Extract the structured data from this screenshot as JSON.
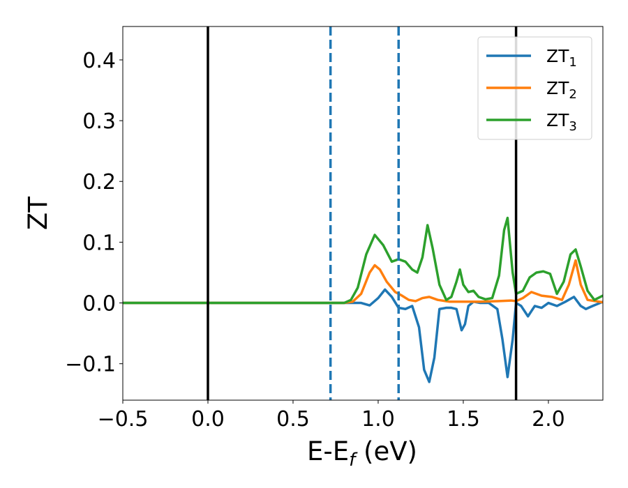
{
  "chart_data": {
    "type": "line",
    "xlabel": "E-E",
    "xlabel_sub": "f",
    "xlabel_unit": " (eV)",
    "ylabel": "ZT",
    "xlim": [
      -0.5,
      2.32
    ],
    "ylim": [
      -0.16,
      0.455
    ],
    "xticks": [
      -0.5,
      0.0,
      0.5,
      1.0,
      1.5,
      2.0
    ],
    "xtick_labels": [
      "−0.5",
      "0.0",
      "0.5",
      "1.0",
      "1.5",
      "2.0"
    ],
    "yticks": [
      -0.1,
      0.0,
      0.1,
      0.2,
      0.3,
      0.4
    ],
    "ytick_labels": [
      "−0.1",
      "0.0",
      "0.1",
      "0.2",
      "0.3",
      "0.4"
    ],
    "grid": false,
    "legend_position": "top-right",
    "vlines": [
      {
        "x": 0.0,
        "style": "solid",
        "color": "#000000"
      },
      {
        "x": 1.81,
        "style": "solid",
        "color": "#000000"
      },
      {
        "x": 0.72,
        "style": "dashed",
        "color": "#1f77b4"
      },
      {
        "x": 1.12,
        "style": "dashed",
        "color": "#1f77b4"
      }
    ],
    "series": [
      {
        "name": "ZT",
        "sub": "1",
        "color": "#1f77b4",
        "points": [
          [
            -0.5,
            0
          ],
          [
            0.8,
            0
          ],
          [
            0.9,
            0
          ],
          [
            0.95,
            -0.004
          ],
          [
            1.0,
            0.008
          ],
          [
            1.04,
            0.022
          ],
          [
            1.08,
            0.01
          ],
          [
            1.12,
            -0.008
          ],
          [
            1.16,
            -0.01
          ],
          [
            1.2,
            -0.005
          ],
          [
            1.24,
            -0.04
          ],
          [
            1.27,
            -0.11
          ],
          [
            1.3,
            -0.13
          ],
          [
            1.33,
            -0.09
          ],
          [
            1.36,
            -0.01
          ],
          [
            1.4,
            -0.008
          ],
          [
            1.43,
            -0.008
          ],
          [
            1.46,
            -0.01
          ],
          [
            1.49,
            -0.045
          ],
          [
            1.51,
            -0.035
          ],
          [
            1.53,
            -0.005
          ],
          [
            1.56,
            0.002
          ],
          [
            1.6,
            0.0
          ],
          [
            1.65,
            0.0
          ],
          [
            1.7,
            -0.01
          ],
          [
            1.73,
            -0.06
          ],
          [
            1.76,
            -0.122
          ],
          [
            1.79,
            -0.06
          ],
          [
            1.81,
            0.0
          ],
          [
            1.84,
            -0.005
          ],
          [
            1.88,
            -0.022
          ],
          [
            1.92,
            -0.005
          ],
          [
            1.96,
            -0.008
          ],
          [
            2.0,
            0.0
          ],
          [
            2.05,
            -0.005
          ],
          [
            2.1,
            0.002
          ],
          [
            2.15,
            0.01
          ],
          [
            2.19,
            -0.005
          ],
          [
            2.22,
            -0.01
          ],
          [
            2.26,
            -0.005
          ],
          [
            2.32,
            0.002
          ]
        ]
      },
      {
        "name": "ZT",
        "sub": "2",
        "color": "#ff7f0e",
        "points": [
          [
            -0.5,
            0
          ],
          [
            0.8,
            0
          ],
          [
            0.85,
            0.002
          ],
          [
            0.9,
            0.015
          ],
          [
            0.95,
            0.05
          ],
          [
            0.98,
            0.062
          ],
          [
            1.01,
            0.055
          ],
          [
            1.05,
            0.035
          ],
          [
            1.1,
            0.018
          ],
          [
            1.14,
            0.012
          ],
          [
            1.18,
            0.005
          ],
          [
            1.22,
            0.003
          ],
          [
            1.26,
            0.008
          ],
          [
            1.3,
            0.01
          ],
          [
            1.35,
            0.005
          ],
          [
            1.42,
            0.002
          ],
          [
            1.5,
            0.002
          ],
          [
            1.6,
            0.002
          ],
          [
            1.7,
            0.003
          ],
          [
            1.78,
            0.004
          ],
          [
            1.81,
            0.003
          ],
          [
            1.85,
            0.008
          ],
          [
            1.9,
            0.018
          ],
          [
            1.96,
            0.012
          ],
          [
            2.02,
            0.01
          ],
          [
            2.08,
            0.005
          ],
          [
            2.12,
            0.03
          ],
          [
            2.16,
            0.07
          ],
          [
            2.19,
            0.03
          ],
          [
            2.23,
            0.005
          ],
          [
            2.32,
            0.001
          ]
        ]
      },
      {
        "name": "ZT",
        "sub": "3",
        "color": "#2ca02c",
        "points": [
          [
            -0.5,
            0
          ],
          [
            0.8,
            0
          ],
          [
            0.84,
            0.005
          ],
          [
            0.88,
            0.025
          ],
          [
            0.93,
            0.08
          ],
          [
            0.98,
            0.112
          ],
          [
            1.03,
            0.095
          ],
          [
            1.08,
            0.068
          ],
          [
            1.12,
            0.072
          ],
          [
            1.16,
            0.068
          ],
          [
            1.2,
            0.055
          ],
          [
            1.23,
            0.05
          ],
          [
            1.26,
            0.075
          ],
          [
            1.29,
            0.128
          ],
          [
            1.32,
            0.09
          ],
          [
            1.36,
            0.03
          ],
          [
            1.4,
            0.005
          ],
          [
            1.43,
            0.01
          ],
          [
            1.46,
            0.035
          ],
          [
            1.48,
            0.055
          ],
          [
            1.5,
            0.03
          ],
          [
            1.53,
            0.018
          ],
          [
            1.56,
            0.02
          ],
          [
            1.59,
            0.01
          ],
          [
            1.63,
            0.006
          ],
          [
            1.67,
            0.008
          ],
          [
            1.71,
            0.045
          ],
          [
            1.74,
            0.12
          ],
          [
            1.76,
            0.14
          ],
          [
            1.79,
            0.05
          ],
          [
            1.81,
            0.015
          ],
          [
            1.85,
            0.02
          ],
          [
            1.89,
            0.042
          ],
          [
            1.93,
            0.05
          ],
          [
            1.97,
            0.052
          ],
          [
            2.01,
            0.048
          ],
          [
            2.05,
            0.015
          ],
          [
            2.09,
            0.035
          ],
          [
            2.13,
            0.08
          ],
          [
            2.16,
            0.088
          ],
          [
            2.19,
            0.06
          ],
          [
            2.23,
            0.02
          ],
          [
            2.27,
            0.005
          ],
          [
            2.32,
            0.012
          ]
        ]
      }
    ]
  }
}
